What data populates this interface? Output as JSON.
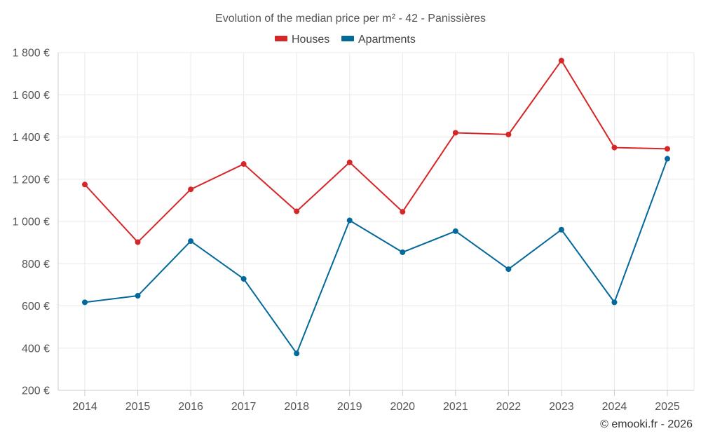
{
  "chart_data": {
    "type": "line",
    "title": "Evolution of the median price per m² - 42 - Panissières",
    "categories": [
      "2014",
      "2015",
      "2016",
      "2017",
      "2018",
      "2019",
      "2020",
      "2021",
      "2022",
      "2023",
      "2024",
      "2025"
    ],
    "series": [
      {
        "name": "Houses",
        "color": "#d62728",
        "values": [
          1175,
          902,
          1152,
          1272,
          1048,
          1280,
          1046,
          1420,
          1412,
          1762,
          1350,
          1344
        ]
      },
      {
        "name": "Apartments",
        "color": "#03689a",
        "values": [
          617,
          648,
          907,
          728,
          375,
          1005,
          854,
          954,
          774,
          961,
          617,
          1297
        ]
      }
    ],
    "ylim": [
      200,
      1800
    ],
    "yticks": [
      200,
      400,
      600,
      800,
      1000,
      1200,
      1400,
      1600,
      1800
    ],
    "ytick_labels": [
      "200 €",
      "400 €",
      "600 €",
      "800 €",
      "1 000 €",
      "1 200 €",
      "1 400 €",
      "1 600 €",
      "1 800 €"
    ],
    "xlabel": "",
    "ylabel": "",
    "grid": true,
    "legend_position": "top-center"
  },
  "credit": "© emooki.fr - 2026"
}
